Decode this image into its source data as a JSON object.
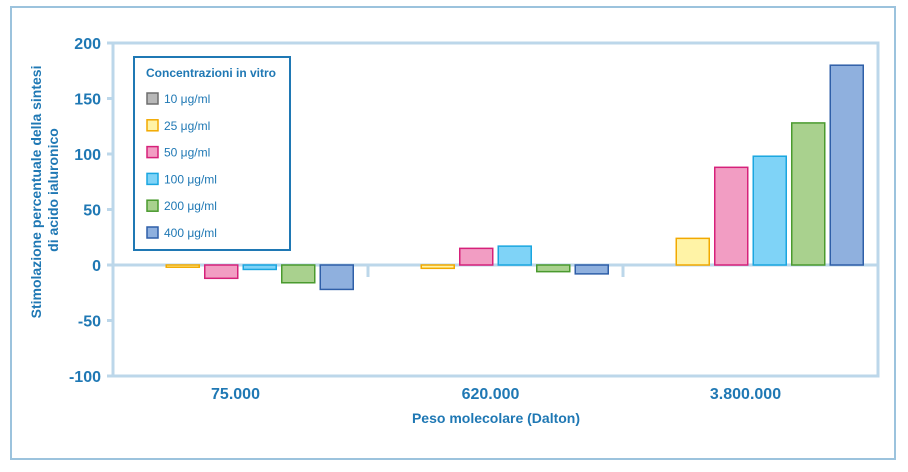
{
  "chart_data": {
    "type": "bar",
    "categories": [
      "75.000",
      "620.000",
      "3.800.000"
    ],
    "xlabel": "Peso molecolare (Dalton)",
    "ylabel_lines": [
      "Stimolazione percentuale della sintesi",
      "di acido ialuronico"
    ],
    "ylim": [
      -100,
      200
    ],
    "yticks": [
      200,
      150,
      100,
      50,
      0,
      -50,
      -100
    ],
    "legend_title": "Concentrazioni in vitro",
    "legend_position": "top-left",
    "series": [
      {
        "name": "10 μg/ml",
        "fill": "#b8b8b8",
        "stroke": "#6e6e6e",
        "values": [
          0,
          0,
          0
        ]
      },
      {
        "name": "25 μg/ml",
        "fill": "#fff3a6",
        "stroke": "#f2a900",
        "values": [
          -2,
          -3,
          24
        ]
      },
      {
        "name": "50 μg/ml",
        "fill": "#f29dc3",
        "stroke": "#d6217a",
        "values": [
          -12,
          15,
          88
        ]
      },
      {
        "name": "100 μg/ml",
        "fill": "#7fd3f7",
        "stroke": "#1aa6e0",
        "values": [
          -4,
          17,
          98
        ]
      },
      {
        "name": "200 μg/ml",
        "fill": "#a9d18e",
        "stroke": "#4a9a2e",
        "values": [
          -16,
          -6,
          128
        ]
      },
      {
        "name": "400 μg/ml",
        "fill": "#8fb0de",
        "stroke": "#2f5fa8",
        "values": [
          -22,
          -8,
          180
        ]
      }
    ],
    "grid": false,
    "axis_color": "#bcd7ea"
  }
}
